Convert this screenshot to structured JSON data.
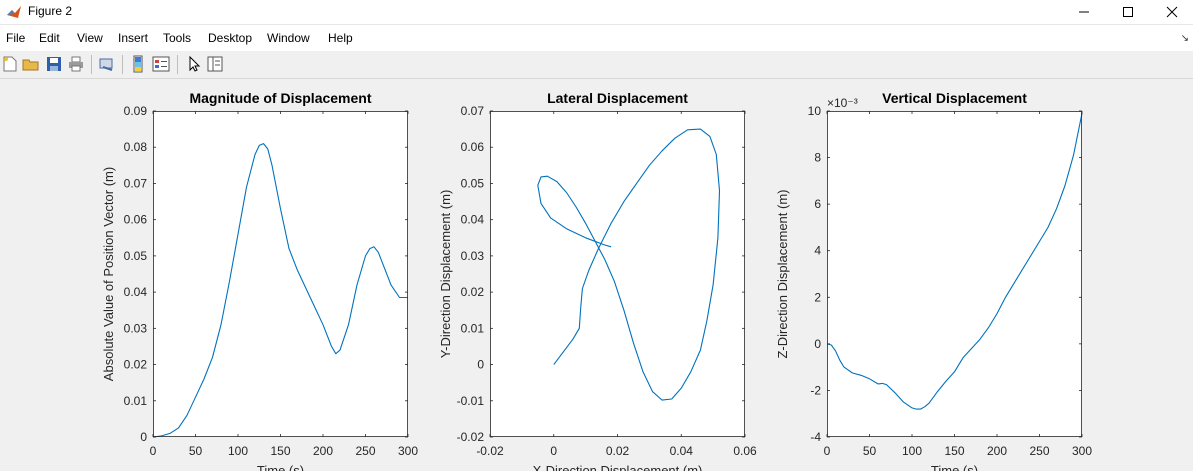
{
  "window": {
    "title": "Figure 2",
    "icon": "matlab-logo-icon",
    "controls": [
      "minimize-icon",
      "maximize-icon",
      "close-icon"
    ]
  },
  "menu": [
    "File",
    "Edit",
    "View",
    "Insert",
    "Tools",
    "Desktop",
    "Window",
    "Help"
  ],
  "toolbar": [
    "new-figure-icon",
    "open-icon",
    "save-icon",
    "print-icon",
    "link-plot-icon",
    "insert-colorbar-icon",
    "insert-legend-icon",
    "edit-plot-arrow-icon",
    "property-inspector-icon"
  ],
  "line_color": "#0072bd",
  "chart_data": [
    {
      "type": "line",
      "title": "Magnitude of Displacement",
      "xlabel": "Time (s)",
      "ylabel": "Absolute Value of Position Vector (m)",
      "xlim": [
        0,
        300
      ],
      "ylim": [
        0,
        0.09
      ],
      "xticks": [
        "0",
        "50",
        "100",
        "150",
        "200",
        "250",
        "300"
      ],
      "yticks": [
        "0",
        "0.01",
        "0.02",
        "0.03",
        "0.04",
        "0.05",
        "0.06",
        "0.07",
        "0.08",
        "0.09"
      ],
      "grid": false,
      "x": [
        0,
        10,
        20,
        30,
        40,
        50,
        60,
        70,
        80,
        90,
        100,
        110,
        120,
        125,
        130,
        135,
        140,
        150,
        160,
        170,
        180,
        190,
        200,
        210,
        215,
        220,
        230,
        240,
        250,
        255,
        260,
        265,
        270,
        280,
        290,
        300
      ],
      "y": [
        0,
        0.0003,
        0.001,
        0.0025,
        0.006,
        0.011,
        0.016,
        0.022,
        0.031,
        0.043,
        0.056,
        0.069,
        0.078,
        0.0805,
        0.081,
        0.0795,
        0.075,
        0.063,
        0.052,
        0.046,
        0.041,
        0.036,
        0.031,
        0.025,
        0.023,
        0.024,
        0.031,
        0.042,
        0.05,
        0.052,
        0.0525,
        0.051,
        0.048,
        0.042,
        0.0385,
        0.0385
      ]
    },
    {
      "type": "line",
      "title": "Lateral Displacement",
      "xlabel": "X-Direction Displacement (m)",
      "ylabel": "Y-Direction Displacement (m)",
      "xlim": [
        -0.02,
        0.06
      ],
      "ylim": [
        -0.02,
        0.07
      ],
      "xticks": [
        "-0.02",
        "0",
        "0.02",
        "0.04",
        "0.06"
      ],
      "yticks": [
        "-0.02",
        "-0.01",
        "0",
        "0.01",
        "0.02",
        "0.03",
        "0.04",
        "0.05",
        "0.06",
        "0.07"
      ],
      "grid": false,
      "x": [
        0,
        0.003,
        0.006,
        0.008,
        0.0085,
        0.009,
        0.011,
        0.014,
        0.018,
        0.022,
        0.026,
        0.03,
        0.034,
        0.038,
        0.042,
        0.046,
        0.049,
        0.051,
        0.052,
        0.0515,
        0.05,
        0.048,
        0.046,
        0.043,
        0.04,
        0.037,
        0.034,
        0.031,
        0.028,
        0.025,
        0.022,
        0.019,
        0.016,
        0.013,
        0.01,
        0.007,
        0.004,
        0.001,
        -0.002,
        -0.004,
        -0.005,
        -0.004,
        -0.001,
        0.004,
        0.01,
        0.016,
        0.018
      ],
      "y": [
        0,
        0.0035,
        0.007,
        0.01,
        0.016,
        0.021,
        0.026,
        0.032,
        0.039,
        0.045,
        0.05,
        0.055,
        0.059,
        0.0625,
        0.0648,
        0.065,
        0.063,
        0.058,
        0.048,
        0.035,
        0.022,
        0.012,
        0.004,
        -0.002,
        -0.0065,
        -0.0095,
        -0.0098,
        -0.0075,
        -0.002,
        0.006,
        0.015,
        0.023,
        0.029,
        0.034,
        0.039,
        0.0435,
        0.0475,
        0.0505,
        0.052,
        0.0518,
        0.0495,
        0.0445,
        0.0405,
        0.0375,
        0.035,
        0.033,
        0.0325
      ]
    },
    {
      "type": "line",
      "title": "Vertical Displacement",
      "xlabel": "Time (s)",
      "ylabel": "Z-Direction Displacement (m)",
      "exponent_label": "×10⁻³",
      "xlim": [
        0,
        300
      ],
      "ylim": [
        -4,
        10
      ],
      "xticks": [
        "0",
        "50",
        "100",
        "150",
        "200",
        "250",
        "300"
      ],
      "yticks": [
        "-4",
        "-2",
        "0",
        "2",
        "4",
        "6",
        "8",
        "10"
      ],
      "grid": false,
      "x": [
        0,
        5,
        10,
        15,
        20,
        30,
        40,
        50,
        60,
        65,
        70,
        80,
        90,
        100,
        105,
        110,
        115,
        120,
        130,
        140,
        150,
        160,
        170,
        180,
        190,
        200,
        210,
        220,
        230,
        240,
        250,
        260,
        270,
        280,
        290,
        300
      ],
      "y": [
        0,
        -0.05,
        -0.3,
        -0.7,
        -1.0,
        -1.25,
        -1.35,
        -1.5,
        -1.72,
        -1.7,
        -1.75,
        -2.1,
        -2.5,
        -2.75,
        -2.8,
        -2.8,
        -2.7,
        -2.55,
        -2.05,
        -1.6,
        -1.2,
        -0.6,
        -0.2,
        0.2,
        0.7,
        1.3,
        2.0,
        2.6,
        3.2,
        3.8,
        4.4,
        5.0,
        5.8,
        6.8,
        8.1,
        9.9
      ]
    }
  ]
}
